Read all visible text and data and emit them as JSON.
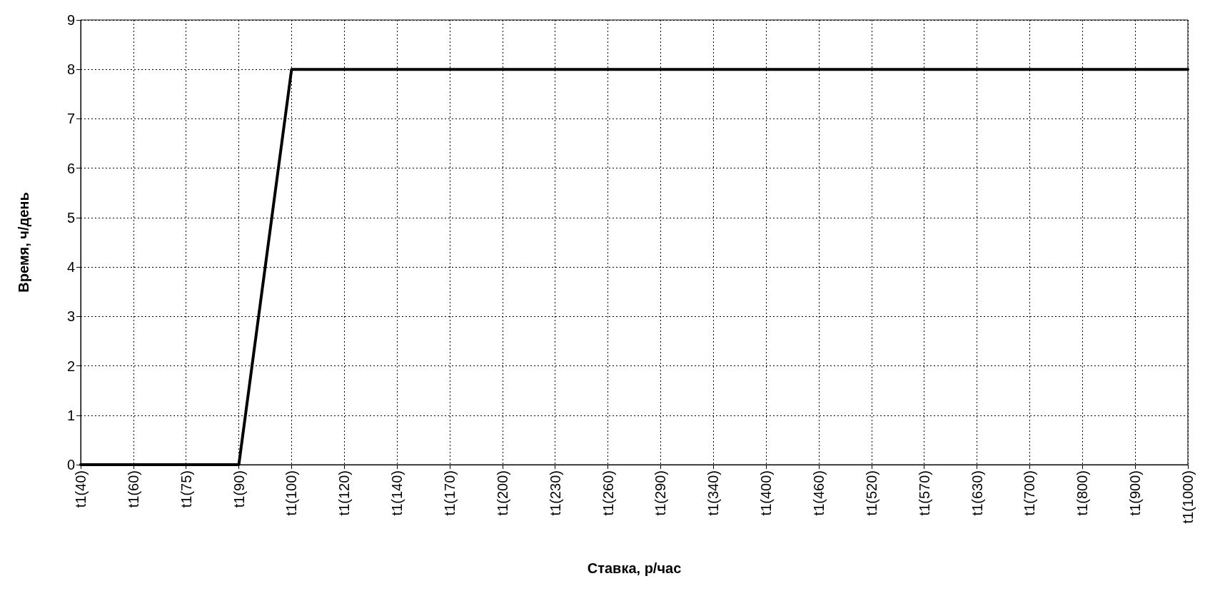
{
  "chart_data": {
    "type": "line",
    "xlabel": "Ставка, р/час",
    "ylabel": "Время, ч/день",
    "categories": [
      "t1(40)",
      "t1(60)",
      "t1(75)",
      "t1(90)",
      "t1(100)",
      "t1(120)",
      "t1(140)",
      "t1(170)",
      "t1(200)",
      "t1(230)",
      "t1(260)",
      "t1(290)",
      "t1(340)",
      "t1(400)",
      "t1(460)",
      "t1(520)",
      "t1(570)",
      "t1(630)",
      "t1(700)",
      "t1(800)",
      "t1(900)",
      "t1(1000)"
    ],
    "series": [
      {
        "color": "#000000",
        "values": [
          0,
          0,
          0,
          0,
          8,
          8,
          8,
          8,
          8,
          8,
          8,
          8,
          8,
          8,
          8,
          8,
          8,
          8,
          8,
          8,
          8,
          8
        ]
      }
    ],
    "ylim": [
      0,
      9
    ],
    "yticks": [
      0,
      1,
      2,
      3,
      4,
      5,
      6,
      7,
      8,
      9
    ],
    "grid": true,
    "marker": "none",
    "line_style": "solid"
  }
}
